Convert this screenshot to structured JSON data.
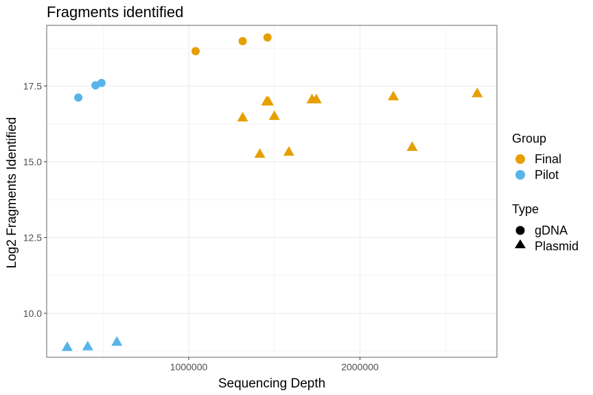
{
  "chart_data": {
    "type": "scatter",
    "title": "Fragments identified",
    "xlabel": "Sequencing Depth",
    "ylabel": "Log2 Fragments Identified",
    "xlim": [
      170000,
      2800000
    ],
    "ylim": [
      8.55,
      19.5
    ],
    "x_ticks": [
      1000000,
      2000000
    ],
    "x_tick_labels": [
      "1000000",
      "2000000"
    ],
    "y_ticks": [
      10.0,
      12.5,
      15.0,
      17.5
    ],
    "y_tick_labels": [
      "10.0",
      "12.5",
      "15.0",
      "17.5"
    ],
    "grid": true,
    "legend_position": "right",
    "legends": {
      "group": {
        "title": "Group",
        "items": [
          {
            "label": "Final",
            "color": "#E69F00"
          },
          {
            "label": "Pilot",
            "color": "#56B4E9"
          }
        ]
      },
      "type": {
        "title": "Type",
        "items": [
          {
            "label": "gDNA",
            "shape": "circle"
          },
          {
            "label": "Plasmid",
            "shape": "triangle"
          }
        ]
      }
    },
    "points": [
      {
        "x": 1040000,
        "y": 18.65,
        "group": "Final",
        "type": "gDNA"
      },
      {
        "x": 1315000,
        "y": 18.98,
        "group": "Final",
        "type": "gDNA"
      },
      {
        "x": 1460000,
        "y": 19.1,
        "group": "Final",
        "type": "gDNA"
      },
      {
        "x": 1315000,
        "y": 16.45,
        "group": "Final",
        "type": "Plasmid"
      },
      {
        "x": 1455000,
        "y": 16.98,
        "group": "Final",
        "type": "Plasmid"
      },
      {
        "x": 1465000,
        "y": 16.98,
        "group": "Final",
        "type": "Plasmid"
      },
      {
        "x": 1500000,
        "y": 16.5,
        "group": "Final",
        "type": "Plasmid"
      },
      {
        "x": 1415000,
        "y": 15.25,
        "group": "Final",
        "type": "Plasmid"
      },
      {
        "x": 1585000,
        "y": 15.32,
        "group": "Final",
        "type": "Plasmid"
      },
      {
        "x": 1720000,
        "y": 17.05,
        "group": "Final",
        "type": "Plasmid"
      },
      {
        "x": 1745000,
        "y": 17.05,
        "group": "Final",
        "type": "Plasmid"
      },
      {
        "x": 2195000,
        "y": 17.15,
        "group": "Final",
        "type": "Plasmid"
      },
      {
        "x": 2305000,
        "y": 15.48,
        "group": "Final",
        "type": "Plasmid"
      },
      {
        "x": 2685000,
        "y": 17.25,
        "group": "Final",
        "type": "Plasmid"
      },
      {
        "x": 355000,
        "y": 17.12,
        "group": "Pilot",
        "type": "gDNA"
      },
      {
        "x": 455000,
        "y": 17.52,
        "group": "Pilot",
        "type": "gDNA"
      },
      {
        "x": 490000,
        "y": 17.6,
        "group": "Pilot",
        "type": "gDNA"
      },
      {
        "x": 290000,
        "y": 8.88,
        "group": "Pilot",
        "type": "Plasmid"
      },
      {
        "x": 410000,
        "y": 8.9,
        "group": "Pilot",
        "type": "Plasmid"
      },
      {
        "x": 580000,
        "y": 9.05,
        "group": "Pilot",
        "type": "Plasmid"
      }
    ]
  }
}
